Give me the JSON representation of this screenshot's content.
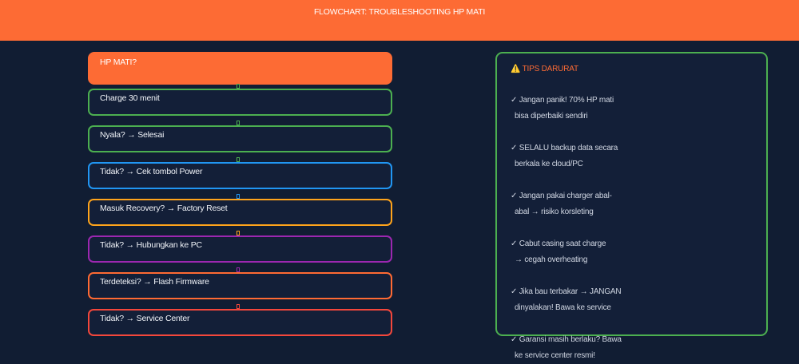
{
  "header": {
    "title": "FLOWCHART: TROUBLESHOOTING HP MATI"
  },
  "flow": {
    "start": "HP MATI?",
    "steps": [
      "Charge 30 menit",
      "Nyala? → Selesai",
      "Tidak? → Cek tombol Power",
      "Masuk Recovery? → Factory Reset",
      "Tidak? → Hubungkan ke PC",
      "Terdeteksi? → Flash Firmware",
      "Tidak? → Service Center"
    ],
    "arrow_glyph": "↓",
    "colors": {
      "start": "#fd6b34",
      "green": "#4caf50",
      "blue": "#2196f3",
      "amber": "#ffa41b",
      "purple": "#9c27b0",
      "orange": "#ff6a33",
      "red": "#f4473b"
    }
  },
  "tips": {
    "title": "⚠️ TIPS DARURAT",
    "items": [
      {
        "line1": "✓ Jangan panik! 70% HP mati",
        "line2": "bisa diperbaiki sendiri"
      },
      {
        "line1": "✓ SELALU backup data secara",
        "line2": "berkala ke cloud/PC"
      },
      {
        "line1": "✓ Jangan pakai charger abal-",
        "line2": "abal → risiko korsleting"
      },
      {
        "line1": "✓ Cabut casing saat charge",
        "line2": "→ cegah overheating"
      },
      {
        "line1": "✓ Jika bau terbakar → JANGAN",
        "line2": "dinyalakan! Bawa ke service"
      },
      {
        "line1": "✓ Garansi masih berlaku? Bawa",
        "line2": "ke service center resmi!"
      }
    ]
  }
}
